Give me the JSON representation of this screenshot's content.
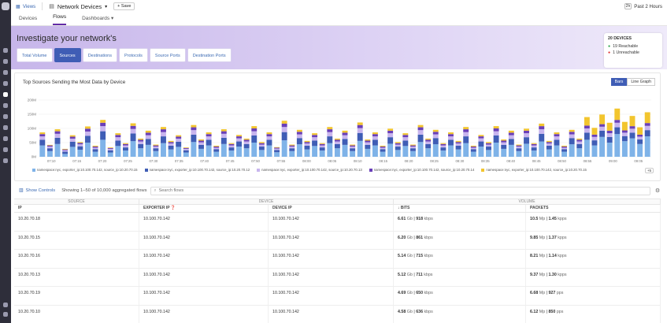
{
  "topbar": {
    "views_label": "Views",
    "title": "Network Devices",
    "save_label": "Save",
    "time_label": "Past 2 Hours",
    "time_badge": "2h"
  },
  "tabs": [
    {
      "label": "Devices"
    },
    {
      "label": "Flows"
    },
    {
      "label": "Dashboards"
    }
  ],
  "hero": {
    "heading": "Investigate your network's",
    "subtabs": [
      "Total Volume",
      "Sources",
      "Destinations",
      "Protocols",
      "Source Ports",
      "Destination Ports"
    ],
    "devices": {
      "count_label": "20 DEVICES",
      "reachable": "19 Reachable",
      "unreachable": "1 Unreachable"
    }
  },
  "chart": {
    "title": "Top Sources Sending the Most Data by Device",
    "toggle": [
      "Bars",
      "Line Graph"
    ],
    "more_label": "+5"
  },
  "chart_data": {
    "type": "bar",
    "stacked": true,
    "ylim": [
      0,
      200
    ],
    "ylabel_unit": "M",
    "yticks": [
      "0M",
      "50M",
      "100M",
      "150M",
      "200M"
    ],
    "xticks": [
      "07:10",
      "07:15",
      "07:20",
      "07:25",
      "07:30",
      "07:35",
      "07:40",
      "07:45",
      "07:50",
      "07:55",
      "08:00",
      "08:05",
      "08:10",
      "08:15",
      "08:20",
      "08:25",
      "08:30",
      "08:35",
      "08:40",
      "08:45",
      "08:50",
      "08:55",
      "09:00",
      "09:05"
    ],
    "series": [
      {
        "name": "namespace:nyc, exporter_ip:10.100.70.142, source_ip:10.20.70.15",
        "color": "#7fb3e8",
        "values": [
          40,
          20,
          45,
          10,
          35,
          25,
          50,
          18,
          60,
          15,
          38,
          22,
          55,
          30,
          42,
          20,
          48,
          26,
          35,
          15,
          52,
          28,
          40,
          18,
          45,
          22,
          36,
          30,
          50,
          24,
          40,
          16,
          58,
          20,
          44,
          26,
          38,
          22,
          48,
          30,
          42,
          20,
          56,
          28,
          40,
          18,
          46,
          24,
          38,
          20,
          52,
          30,
          44,
          22,
          40,
          26,
          48,
          18,
          36,
          24,
          50,
          28,
          42,
          20,
          46,
          22,
          54,
          26,
          40,
          18,
          44,
          30,
          60,
          40,
          70,
          50,
          80,
          55,
          65,
          45,
          72
        ]
      },
      {
        "name": "namespace:nyc, exporter_ip:10.100.70.142, source_ip:10.20.70.12",
        "color": "#3f5db5",
        "values": [
          20,
          10,
          22,
          8,
          18,
          12,
          24,
          9,
          30,
          8,
          19,
          11,
          27,
          15,
          21,
          10,
          24,
          13,
          18,
          8,
          26,
          14,
          20,
          9,
          22,
          11,
          18,
          15,
          25,
          12,
          20,
          8,
          29,
          10,
          22,
          13,
          19,
          11,
          24,
          15,
          21,
          10,
          28,
          14,
          20,
          9,
          23,
          12,
          19,
          10,
          26,
          15,
          22,
          11,
          20,
          13,
          24,
          9,
          18,
          12,
          25,
          14,
          21,
          10,
          23,
          11,
          27,
          13,
          20,
          9,
          22,
          15,
          25,
          18,
          22,
          20,
          24,
          18,
          20,
          16,
          22
        ]
      },
      {
        "name": "namespace:nyc, exporter_ip:10.100.70.142, source_ip:10.20.70.13",
        "color": "#c8b5ee",
        "values": [
          12,
          6,
          14,
          5,
          11,
          7,
          15,
          5,
          18,
          5,
          12,
          7,
          16,
          9,
          13,
          6,
          15,
          8,
          11,
          5,
          16,
          9,
          12,
          5,
          14,
          7,
          11,
          9,
          15,
          7,
          12,
          5,
          18,
          6,
          13,
          8,
          12,
          7,
          15,
          9,
          13,
          6,
          17,
          9,
          12,
          5,
          14,
          7,
          12,
          6,
          16,
          9,
          13,
          7,
          12,
          8,
          15,
          5,
          11,
          7,
          15,
          9,
          13,
          6,
          14,
          7,
          16,
          8,
          12,
          5,
          13,
          9,
          15,
          12,
          14,
          13,
          16,
          12,
          14,
          10,
          15
        ]
      },
      {
        "name": "namespace:nyc, exporter_ip:10.100.70.142, source_ip:10.20.70.14",
        "color": "#6a3fb8",
        "values": [
          8,
          4,
          9,
          3,
          7,
          5,
          10,
          4,
          12,
          3,
          8,
          5,
          11,
          6,
          9,
          4,
          10,
          5,
          7,
          3,
          10,
          6,
          8,
          4,
          9,
          5,
          7,
          6,
          10,
          5,
          8,
          3,
          12,
          4,
          9,
          5,
          8,
          5,
          10,
          6,
          9,
          4,
          11,
          6,
          8,
          4,
          9,
          5,
          8,
          4,
          10,
          6,
          9,
          5,
          8,
          5,
          10,
          4,
          7,
          5,
          10,
          6,
          9,
          4,
          9,
          5,
          11,
          5,
          8,
          4,
          9,
          6,
          10,
          8,
          9,
          9,
          10,
          8,
          9,
          7,
          10
        ]
      },
      {
        "name": "namespace:nyc, exporter_ip:10.100.70.142, source_ip:10.20.70.15",
        "color": "#f2c52e",
        "values": [
          6,
          2,
          7,
          2,
          5,
          3,
          8,
          3,
          10,
          2,
          6,
          3,
          9,
          4,
          7,
          3,
          8,
          4,
          5,
          2,
          8,
          4,
          6,
          3,
          7,
          3,
          5,
          4,
          8,
          4,
          6,
          2,
          10,
          3,
          7,
          4,
          6,
          3,
          8,
          4,
          7,
          3,
          9,
          4,
          6,
          3,
          7,
          4,
          6,
          3,
          8,
          4,
          7,
          3,
          6,
          4,
          8,
          3,
          5,
          4,
          8,
          4,
          7,
          3,
          7,
          3,
          9,
          4,
          6,
          3,
          7,
          4,
          30,
          24,
          34,
          28,
          40,
          30,
          36,
          26,
          38
        ]
      }
    ]
  },
  "controls": {
    "show_controls": "Show Controls",
    "showing": "Showing 1–50 of 10,000 aggregated flows",
    "search_placeholder": "Search flows"
  },
  "table": {
    "groups": [
      "SOURCE",
      "DEVICE",
      "VOLUME"
    ],
    "headers": [
      "IP",
      "EXPORTER IP",
      "DEVICE IP",
      "BITS",
      "PACKETS"
    ],
    "rows": [
      {
        "ip": "10.20.70.18",
        "exporter": "10.100.70.142",
        "device": "10.100.70.142",
        "bits_a": "6.61",
        "bits_au": "Gb",
        "bits_b": "918",
        "bits_bu": "kbps",
        "pk_a": "10.5",
        "pk_au": "Mp",
        "pk_b": "1.45",
        "pk_bu": "kpps"
      },
      {
        "ip": "10.20.70.15",
        "exporter": "10.100.70.142",
        "device": "10.100.70.142",
        "bits_a": "6.20",
        "bits_au": "Gb",
        "bits_b": "861",
        "bits_bu": "kbps",
        "pk_a": "9.85",
        "pk_au": "Mp",
        "pk_b": "1.37",
        "pk_bu": "kpps"
      },
      {
        "ip": "10.20.70.16",
        "exporter": "10.100.70.142",
        "device": "10.100.70.142",
        "bits_a": "5.14",
        "bits_au": "Gb",
        "bits_b": "715",
        "bits_bu": "kbps",
        "pk_a": "8.21",
        "pk_au": "Mp",
        "pk_b": "1.14",
        "pk_bu": "kpps"
      },
      {
        "ip": "10.20.70.13",
        "exporter": "10.100.70.142",
        "device": "10.100.70.142",
        "bits_a": "5.12",
        "bits_au": "Gb",
        "bits_b": "711",
        "bits_bu": "kbps",
        "pk_a": "9.37",
        "pk_au": "Mp",
        "pk_b": "1.30",
        "pk_bu": "kpps"
      },
      {
        "ip": "10.20.70.19",
        "exporter": "10.100.70.142",
        "device": "10.100.70.142",
        "bits_a": "4.69",
        "bits_au": "Gb",
        "bits_b": "650",
        "bits_bu": "kbps",
        "pk_a": "6.68",
        "pk_au": "Mp",
        "pk_b": "927",
        "pk_bu": "pps"
      },
      {
        "ip": "10.20.70.10",
        "exporter": "10.100.70.142",
        "device": "10.100.70.142",
        "bits_a": "4.58",
        "bits_au": "Gb",
        "bits_b": "636",
        "bits_bu": "kbps",
        "pk_a": "6.12",
        "pk_au": "Mp",
        "pk_b": "850",
        "pk_bu": "pps"
      }
    ]
  }
}
